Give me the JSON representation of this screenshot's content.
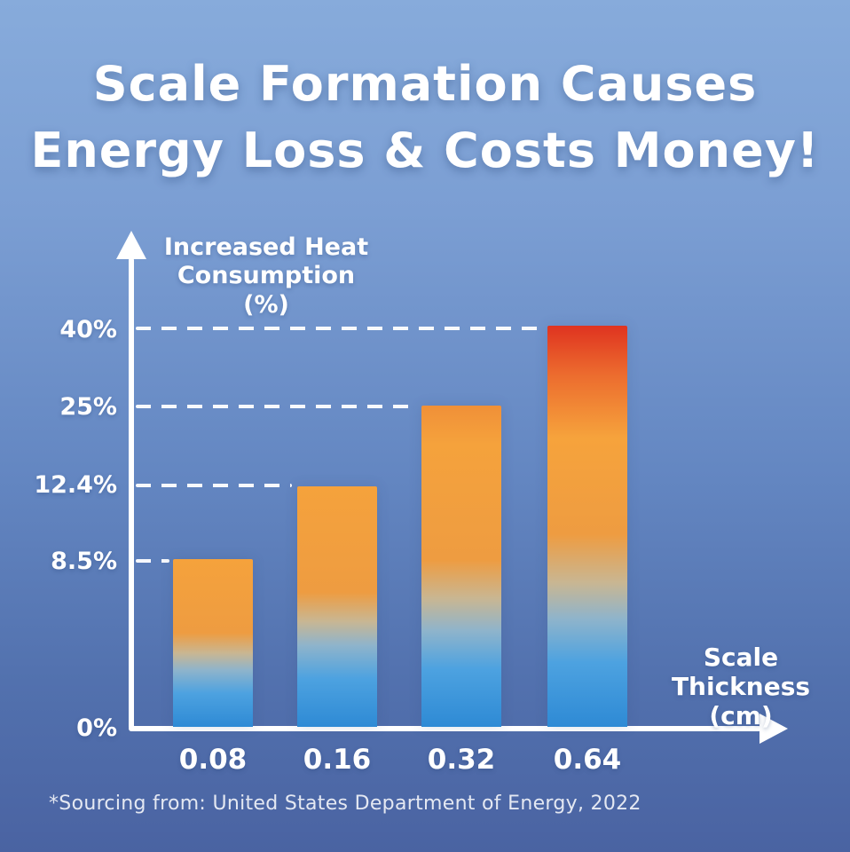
{
  "title": {
    "line1": "Scale Formation Causes",
    "line2": "Energy Loss & Costs Money!"
  },
  "chart_data": {
    "type": "bar",
    "title": "Scale Formation Causes Energy Loss & Costs Money!",
    "categories": [
      "0.08",
      "0.16",
      "0.32",
      "0.64"
    ],
    "values": [
      8.5,
      12.4,
      25,
      40
    ],
    "value_unit": "%",
    "y_tick_labels": [
      "40%",
      "25%",
      "12.4%",
      "8.5%",
      "0%"
    ],
    "xlabel": "Scale Thickness (cm)",
    "xlabel_lines": {
      "line1": "Scale Thickness",
      "line2": "(cm)"
    },
    "ylabel": "Increased Heat Consumption (%)",
    "ylabel_lines": {
      "line1": "Increased Heat",
      "line2": "Consumption (%)"
    },
    "ylim": [
      0,
      44
    ],
    "legend_position": "none",
    "grid": "horizontal white dashed guide lines from y-axis to each bar top",
    "bar_gradient": [
      "#2e8ad5",
      "#f5a23c",
      "#df3320"
    ]
  },
  "footer": {
    "source": "*Sourcing from: United States Department of Energy, 2022"
  },
  "colors": {
    "background_top": "#87abdb",
    "background_bottom": "#4a63a2",
    "axis": "#ffffff",
    "text": "#ffffff",
    "bar_bottom": "#2e8ad5",
    "bar_middle": "#f5a23c",
    "bar_top_max": "#df3320"
  }
}
